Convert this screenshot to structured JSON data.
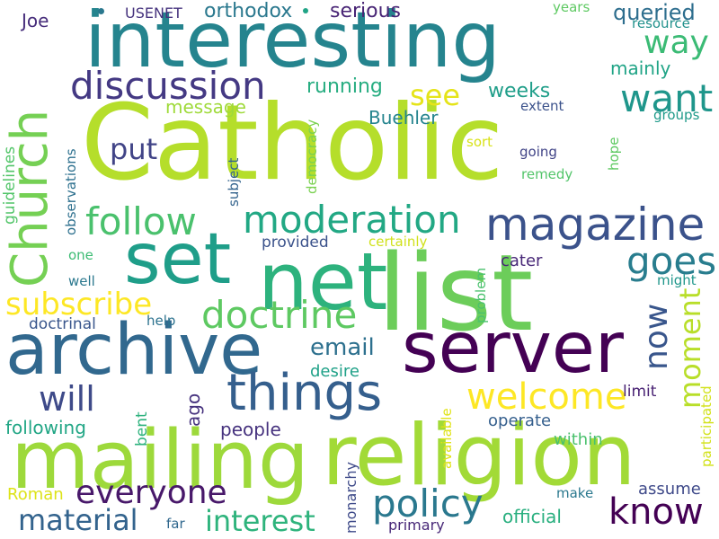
{
  "words": [
    {
      "text": "Catholic",
      "color": "#b5de2b"
    },
    {
      "text": "interesting",
      "color": "#25848e"
    },
    {
      "text": "list",
      "color": "#6ccd5a"
    },
    {
      "text": "religion",
      "color": "#a2da37"
    },
    {
      "text": "mailing",
      "color": "#9dd93b"
    },
    {
      "text": "net",
      "color": "#2db27d"
    },
    {
      "text": "server",
      "color": "#440154"
    },
    {
      "text": "archive",
      "color": "#31688e"
    },
    {
      "text": "set",
      "color": "#1f9e89"
    },
    {
      "text": "Church",
      "color": "#75d054"
    },
    {
      "text": "things",
      "color": "#355f8d"
    },
    {
      "text": "magazine",
      "color": "#3b528b"
    },
    {
      "text": "moderation",
      "color": "#22a884"
    },
    {
      "text": "discussion",
      "color": "#443983"
    },
    {
      "text": "follow",
      "color": "#4ac16d"
    },
    {
      "text": "doctrine",
      "color": "#5ec962"
    },
    {
      "text": "welcome",
      "color": "#fde725"
    },
    {
      "text": "everyone",
      "color": "#48186a"
    },
    {
      "text": "policy",
      "color": "#2a788e"
    },
    {
      "text": "know",
      "color": "#440154"
    },
    {
      "text": "want",
      "color": "#1f968b"
    },
    {
      "text": "goes",
      "color": "#287d8e"
    },
    {
      "text": "way",
      "color": "#3bbb75"
    },
    {
      "text": "moment",
      "color": "#b8de29"
    },
    {
      "text": "subscribe",
      "color": "#fde725"
    },
    {
      "text": "material",
      "color": "#33638d"
    },
    {
      "text": "interest",
      "color": "#2eb37c"
    },
    {
      "text": "will",
      "color": "#3e4a89"
    },
    {
      "text": "now",
      "color": "#39568c"
    },
    {
      "text": "see",
      "color": "#e5e419"
    },
    {
      "text": "put",
      "color": "#414487"
    },
    {
      "text": "email",
      "color": "#2d708e"
    },
    {
      "text": "queried",
      "color": "#2e6e8e"
    },
    {
      "text": "orthodox",
      "color": "#2a788e"
    },
    {
      "text": "serious",
      "color": "#482475"
    },
    {
      "text": "running",
      "color": "#27ad81"
    },
    {
      "text": "weeks",
      "color": "#1f9e89"
    },
    {
      "text": "mainly",
      "color": "#20a486"
    },
    {
      "text": "Buehler",
      "color": "#25848e"
    },
    {
      "text": "message",
      "color": "#9fda3a"
    },
    {
      "text": "USENET",
      "color": "#46337e"
    },
    {
      "text": "Joe",
      "color": "#472d7b"
    },
    {
      "text": "years",
      "color": "#5ec962"
    },
    {
      "text": "resource",
      "color": "#21918c"
    },
    {
      "text": "extent",
      "color": "#3b528b"
    },
    {
      "text": "groups",
      "color": "#1f9a8a"
    },
    {
      "text": "sort",
      "color": "#d8e219"
    },
    {
      "text": "going",
      "color": "#414487"
    },
    {
      "text": "remedy",
      "color": "#52c569"
    },
    {
      "text": "hope",
      "color": "#5ec962"
    },
    {
      "text": "provided",
      "color": "#3b528b"
    },
    {
      "text": "certainly",
      "color": "#d0e11c"
    },
    {
      "text": "cater",
      "color": "#482878"
    },
    {
      "text": "might",
      "color": "#1f968b"
    },
    {
      "text": "doctrinal",
      "color": "#39568c"
    },
    {
      "text": "help",
      "color": "#2c728e"
    },
    {
      "text": "desire",
      "color": "#1fa188"
    },
    {
      "text": "ago",
      "color": "#46327e"
    },
    {
      "text": "bent",
      "color": "#2db27d"
    },
    {
      "text": "following",
      "color": "#21a685"
    },
    {
      "text": "people",
      "color": "#46327e"
    },
    {
      "text": "operate",
      "color": "#355f8d"
    },
    {
      "text": "within",
      "color": "#4ac16d"
    },
    {
      "text": "limit",
      "color": "#482173"
    },
    {
      "text": "participated",
      "color": "#d2e21b"
    },
    {
      "text": "assume",
      "color": "#3e4989"
    },
    {
      "text": "make",
      "color": "#2a788e"
    },
    {
      "text": "official",
      "color": "#29af7f"
    },
    {
      "text": "primary",
      "color": "#482878"
    },
    {
      "text": "far",
      "color": "#31688e"
    },
    {
      "text": "Roman",
      "color": "#dde318"
    },
    {
      "text": "one",
      "color": "#3dbc74"
    },
    {
      "text": "well",
      "color": "#2a788e"
    },
    {
      "text": "guidelines",
      "color": "#52c569"
    },
    {
      "text": "observations",
      "color": "#2d708e"
    },
    {
      "text": "subject",
      "color": "#33638d"
    },
    {
      "text": "democracy",
      "color": "#7ad151"
    },
    {
      "text": "problem",
      "color": "#4ac16d"
    },
    {
      "text": "available",
      "color": "#e0e318"
    },
    {
      "text": "monarchy",
      "color": "#3e4a89"
    }
  ]
}
